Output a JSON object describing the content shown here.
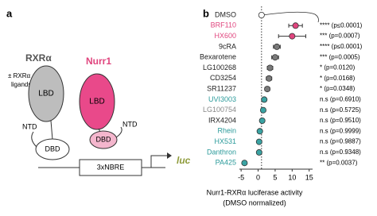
{
  "panel_a": {
    "label": "a",
    "rxr": "RXRα",
    "ligands_1": "± RXRα",
    "ligands_2": "ligands",
    "rxr_lbd": "LBD",
    "rxr_dbd": "DBD",
    "rxr_ntd": "NTD",
    "nurr1": "Nurr1",
    "nurr1_lbd": "LBD",
    "nurr1_dbd": "DBD",
    "nurr1_ntd": "NTD",
    "response_element": "3xNBRE",
    "reporter": "luc"
  },
  "chart_data": {
    "type": "dotplot",
    "panel_label": "b",
    "x_label_1": "Nurr1-RXRα luciferase activity",
    "x_label_2": "(DMSO normalized)",
    "categories": [
      "DMSO",
      "BRF110",
      "HX600",
      "9cRA",
      "Bexarotene",
      "LG100268",
      "CD3254",
      "SR11237",
      "UVI3003",
      "LG100754",
      "IRX4204",
      "Rhein",
      "HX531",
      "Danthron",
      "PA425"
    ],
    "label_colors": [
      "#222",
      "#e0457e",
      "#e0457e",
      "#222",
      "#222",
      "#222",
      "#222",
      "#222",
      "#2a9a9a",
      "#888",
      "#222",
      "#2a9a9a",
      "#2a9a9a",
      "#2a9a9a",
      "#2a9a9a"
    ],
    "series": [
      {
        "values": [
          1,
          11,
          10,
          5.5,
          5,
          3.5,
          3.2,
          2.7,
          1.8,
          1.5,
          1.2,
          0.5,
          0.3,
          0.3,
          -4
        ],
        "errors": [
          0.3,
          2,
          4,
          1,
          1,
          0.8,
          0.8,
          0.7,
          0.6,
          0.5,
          0.5,
          0.5,
          0.5,
          0.6,
          0.4
        ],
        "colors": [
          "#ffffff",
          "#e0457e",
          "#e0457e",
          "#7a7a7a",
          "#7a7a7a",
          "#7a7a7a",
          "#7a7a7a",
          "#7a7a7a",
          "#3aa3a3",
          "#3aa3a3",
          "#3aa3a3",
          "#3aa3a3",
          "#3aa3a3",
          "#3aa3a3",
          "#3aa3a3"
        ]
      }
    ],
    "significance": [
      "",
      "**** (p≤0.0001)",
      "*** (p=0.0007)",
      "**** (p≤0.0001)",
      "*** (p=0.0005)",
      "* (p=0.0120)",
      "* (p=0.0168)",
      "* (p=0.0348)",
      "n.s (p=0.6910)",
      "n.s (p=0.5725)",
      "n.s (p=0.9510)",
      "n.s (p=0.9999)",
      "n.s (p=0.9887)",
      "n.s (p=0.9348)",
      "** (p=0.0037)"
    ],
    "reference_line": 1,
    "xlim": [
      -5.5,
      16
    ],
    "xticks": [
      -5,
      0,
      5,
      10,
      15
    ]
  }
}
